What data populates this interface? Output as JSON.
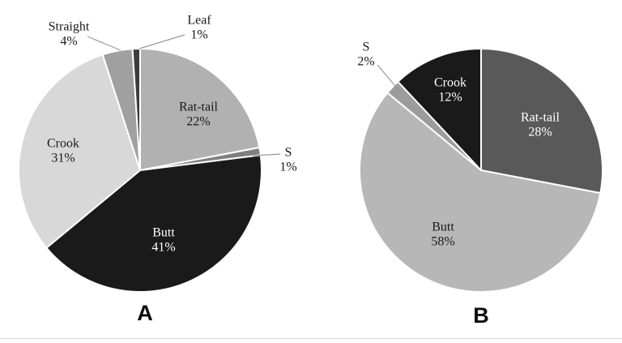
{
  "page": {
    "background_color": "#ffffff",
    "bottom_rule_color": "#d9d9d9"
  },
  "chart_data": [
    {
      "type": "pie",
      "caption": "A",
      "start_angle_deg": 0,
      "direction": "clockwise",
      "legend_position": "none",
      "slice_border_color": "#ffffff",
      "leader_line_color": "#999999",
      "outside_label_color": "#1a1a1a",
      "slices": [
        {
          "label": "Rat-tail",
          "value": 22,
          "percent_label": "22%",
          "color": "#b1b1b1",
          "text_color": "#1a1a1a",
          "label_placement": "inside"
        },
        {
          "label": "S",
          "value": 1,
          "percent_label": "1%",
          "color": "#7f7f7f",
          "text_color": "#1a1a1a",
          "label_placement": "outside"
        },
        {
          "label": "Butt",
          "value": 41,
          "percent_label": "41%",
          "color": "#1a1a1a",
          "text_color": "#ffffff",
          "label_placement": "inside"
        },
        {
          "label": "Crook",
          "value": 31,
          "percent_label": "31%",
          "color": "#d8d8d8",
          "text_color": "#1a1a1a",
          "label_placement": "inside"
        },
        {
          "label": "Straight",
          "value": 4,
          "percent_label": "4%",
          "color": "#a0a0a0",
          "text_color": "#1a1a1a",
          "label_placement": "outside"
        },
        {
          "label": "Leaf",
          "value": 1,
          "percent_label": "1%",
          "color": "#3d3d3d",
          "text_color": "#1a1a1a",
          "label_placement": "outside"
        }
      ]
    },
    {
      "type": "pie",
      "caption": "B",
      "start_angle_deg": 0,
      "direction": "clockwise",
      "legend_position": "none",
      "slice_border_color": "#ffffff",
      "leader_line_color": "#999999",
      "outside_label_color": "#1a1a1a",
      "slices": [
        {
          "label": "Rat-tail",
          "value": 28,
          "percent_label": "28%",
          "color": "#595959",
          "text_color": "#ffffff",
          "label_placement": "inside"
        },
        {
          "label": "Butt",
          "value": 58,
          "percent_label": "58%",
          "color": "#b7b7b7",
          "text_color": "#1a1a1a",
          "label_placement": "inside"
        },
        {
          "label": "S",
          "value": 2,
          "percent_label": "2%",
          "color": "#9c9c9c",
          "text_color": "#1a1a1a",
          "label_placement": "outside"
        },
        {
          "label": "Crook",
          "value": 12,
          "percent_label": "12%",
          "color": "#1a1a1a",
          "text_color": "#ffffff",
          "label_placement": "inside"
        }
      ]
    }
  ]
}
